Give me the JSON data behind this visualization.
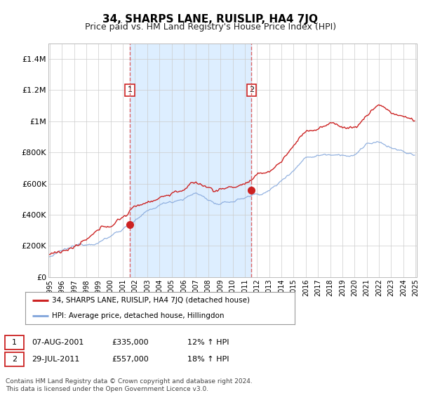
{
  "title": "34, SHARPS LANE, RUISLIP, HA4 7JQ",
  "subtitle": "Price paid vs. HM Land Registry's House Price Index (HPI)",
  "ylabel_ticks": [
    "£0",
    "£200K",
    "£400K",
    "£600K",
    "£800K",
    "£1M",
    "£1.2M",
    "£1.4M"
  ],
  "ylim": [
    0,
    1500000
  ],
  "yticks": [
    0,
    200000,
    400000,
    600000,
    800000,
    1000000,
    1200000,
    1400000
  ],
  "x_start_year": 1995,
  "x_end_year": 2025,
  "purchase1_year": 2001.58,
  "purchase1_price": 335000,
  "purchase2_year": 2011.55,
  "purchase2_price": 557000,
  "red_line_color": "#cc2222",
  "blue_line_color": "#88aadd",
  "dashed_vline_color": "#dd6666",
  "shade_color": "#ddeeff",
  "legend_label_red": "34, SHARPS LANE, RUISLIP, HA4 7JQ (detached house)",
  "legend_label_blue": "HPI: Average price, detached house, Hillingdon",
  "table_row1": [
    "1",
    "07-AUG-2001",
    "£335,000",
    "12% ↑ HPI"
  ],
  "table_row2": [
    "2",
    "29-JUL-2011",
    "£557,000",
    "18% ↑ HPI"
  ],
  "footer": "Contains HM Land Registry data © Crown copyright and database right 2024.\nThis data is licensed under the Open Government Licence v3.0.",
  "background_color": "#ffffff",
  "grid_color": "#cccccc",
  "title_fontsize": 11,
  "subtitle_fontsize": 9
}
